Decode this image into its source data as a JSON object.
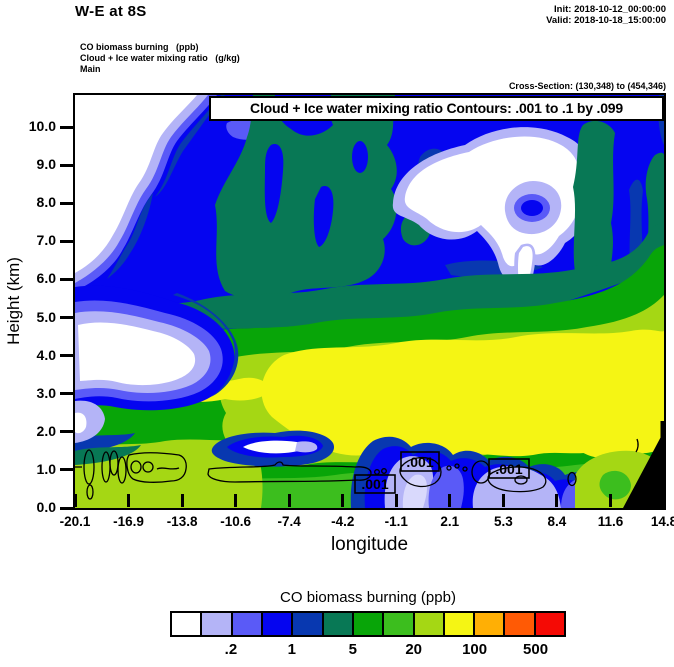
{
  "header": {
    "title": "W-E at 8S",
    "init_line": "Init: 2018-10-12_00:00:00",
    "valid_line": "Valid: 2018-10-18_15:00:00",
    "field_lines": [
      "CO biomass burning   (ppb)",
      "Cloud + Ice water mixing ratio   (g/kg)",
      "Main"
    ],
    "cross_section_line": "Cross-Section: (130,348) to (454,346)"
  },
  "plot": {
    "inner_title": "Cloud + Ice water mixing ratio Contours: .001 to .1 by .099",
    "xlabel": "longitude",
    "ylabel": "Height (km)",
    "contour_label": ".001"
  },
  "colorbar": {
    "title": "CO biomass burning  (ppb)",
    "tick_labels": [
      ".2",
      "1",
      "5",
      "20",
      "100",
      "500"
    ],
    "colors": [
      "#FFFFFF",
      "#B4B4F7",
      "#5A5AF7",
      "#0505F0",
      "#0838B0",
      "#087855",
      "#08A508",
      "#3CBE1E",
      "#A5D714",
      "#F5F514",
      "#FFAF05",
      "#FF5A05",
      "#F50A05"
    ]
  },
  "chart_data": {
    "type": "heatmap",
    "subtype": "filled-contour vertical cross-section with overlaid line contours",
    "title": "W-E at 8S",
    "init": "2018-10-12_00:00:00",
    "valid": "2018-10-18_15:00:00",
    "cross_section_points": "(130,348) to (454,346)",
    "xlabel": "longitude",
    "ylabel": "Height (km)",
    "xlim": [
      -20.1,
      14.8
    ],
    "ylim": [
      0,
      10.8
    ],
    "x_ticks": [
      -20.1,
      -16.9,
      -13.8,
      -10.6,
      -7.4,
      -4.2,
      -1.1,
      2.1,
      5.3,
      8.4,
      11.6,
      14.8
    ],
    "x_tick_labels": [
      "-20.1",
      "-16.9",
      "-13.8",
      "-10.6",
      "-7.4",
      "-4.2",
      "-1.1",
      "2.1",
      "5.3",
      "8.4",
      "11.6",
      "14.8"
    ],
    "y_ticks": [
      0,
      1,
      2,
      3,
      4,
      5,
      6,
      7,
      8,
      9,
      10
    ],
    "y_tick_labels": [
      "0.0",
      "1.0",
      "2.0",
      "3.0",
      "4.0",
      "5.0",
      "6.0",
      "7.0",
      "8.0",
      "9.0",
      "10.0"
    ],
    "grid": false,
    "fill_field": {
      "name": "CO biomass burning (ppb)",
      "n_color_bins": 13,
      "labeled_levels": [
        0.2,
        1,
        5,
        20,
        100,
        500
      ],
      "colors": [
        "#FFFFFF",
        "#B4B4F7",
        "#5A5AF7",
        "#0505F0",
        "#0838B0",
        "#087855",
        "#08A508",
        "#3CBE1E",
        "#A5D714",
        "#F5F514",
        "#FFAF05",
        "#FF5A05",
        "#F50A05"
      ],
      "legend_position": "bottom horizontal colorbar"
    },
    "contour_field": {
      "name": "Cloud + Ice water mixing ratio (g/kg)",
      "levels_spec": ".001 to .1 by .099",
      "levels": [
        0.001,
        0.1
      ],
      "label_instances": [
        {
          "text": ".001",
          "lon": -2.4,
          "height_km": 0.6
        },
        {
          "text": ".001",
          "lon": 0.4,
          "height_km": 1.2
        },
        {
          "text": ".001",
          "lon": 5.6,
          "height_km": 1.0
        }
      ]
    },
    "features": [
      {
        "bin": "< lowest bin (white)",
        "where": "upper-left above ~6 km west of -13 deg; pocket near -19 to -15 deg at 3-4.5 km; large blob 0 to 8 deg at 7.5-9.5 km; small cloud core near -7.5 deg at ~1.3 km"
      },
      {
        "bin": "light purples (~0.2-1 ppb)",
        "where": "fringes of all white areas; near-surface columns -1 to 2.5 deg and 4.5 to 8 deg below ~1.8 km"
      },
      {
        "bin": "blue (~1-2 ppb)",
        "where": "dominant through the 6-10.8 km layer"
      },
      {
        "bin": "navy / dark teal (~2-5 ppb)",
        "where": "streaks and columns aloft and transition band near 5.5-6.5 km"
      },
      {
        "bin": "greens (~5-20 ppb)",
        "where": "band at 5-6 km and boundary layer 0-2 km"
      },
      {
        "bin": "yellow-green / yellow (~20-100 ppb)",
        "where": "smoke plume core ~2-5 km spanning whole section, thickest east of -6 deg"
      },
      {
        "bin": "cloud contours .001 g/kg",
        "where": "shallow closed contours below ~1.5 km between -20 and 7 deg"
      }
    ],
    "terrain": "black terrain mask in lower-right corner near 13-14.8 deg below ~1.8 km"
  }
}
